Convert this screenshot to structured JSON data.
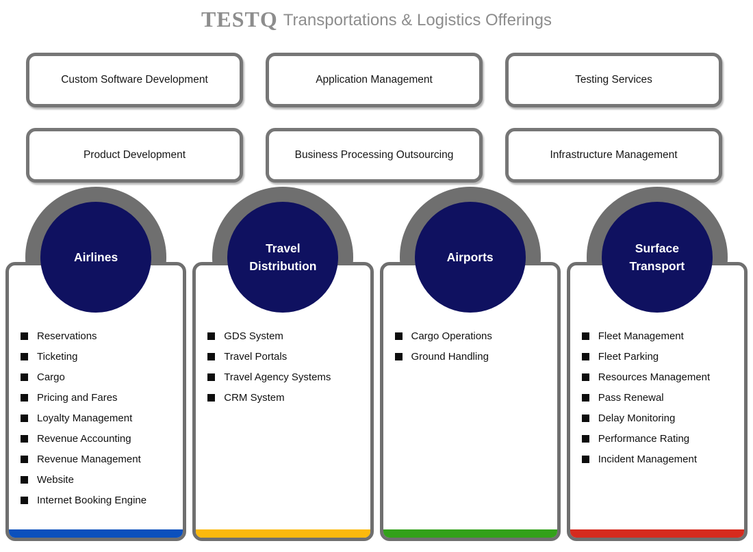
{
  "title": {
    "brand": "TESTQ",
    "rest": "Transportations & Logistics Offerings"
  },
  "services": [
    {
      "label": "Custom Software Development"
    },
    {
      "label": "Application Management"
    },
    {
      "label": "Testing Services"
    },
    {
      "label": "Product Development"
    },
    {
      "label": "Business Processing Outsourcing"
    },
    {
      "label": "Infrastructure Management"
    }
  ],
  "pillars": [
    {
      "name": "Airlines",
      "accent": "#0b50bd",
      "items": [
        "Reservations",
        "Ticketing",
        "Cargo",
        "Pricing and Fares",
        "Loyalty Management",
        "Revenue Accounting",
        "Revenue Management",
        "Website",
        "Internet Booking Engine"
      ]
    },
    {
      "name": "Travel Distribution",
      "accent": "#fbb90d",
      "items": [
        "GDS System",
        "Travel Portals",
        "Travel Agency Systems",
        "CRM System"
      ]
    },
    {
      "name": "Airports",
      "accent": "#33a11a",
      "items": [
        "Cargo Operations",
        "Ground Handling"
      ]
    },
    {
      "name": "Surface Transport",
      "accent": "#d62b1e",
      "items": [
        "Fleet Management",
        "Fleet Parking",
        "Resources Management",
        "Pass Renewal",
        "Delay Monitoring",
        "Performance Rating",
        "Incident Management"
      ]
    }
  ],
  "colors": {
    "navy": "#0f1160",
    "border_gray": "#6f6f6f",
    "title_gray": "#8d8d8d"
  }
}
